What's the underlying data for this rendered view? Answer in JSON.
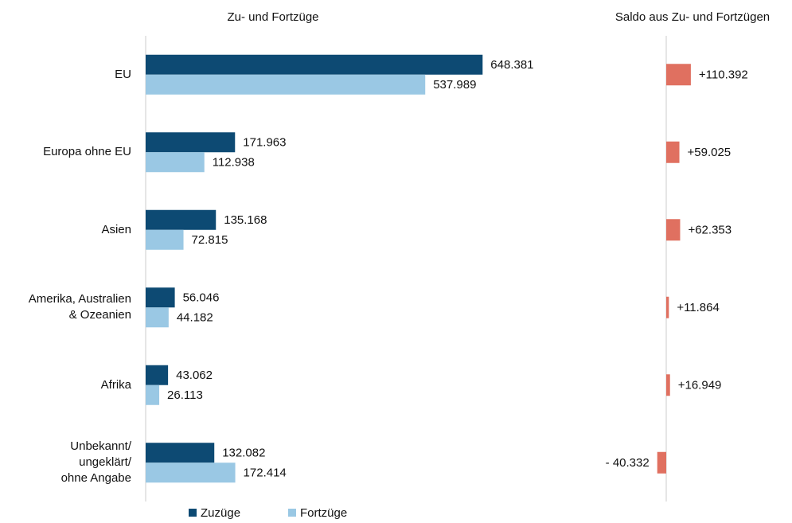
{
  "chart_data": [
    {
      "type": "bar",
      "orientation": "horizontal",
      "title": "Zu- und Fortzüge",
      "categories": [
        "EU",
        "Europa ohne EU",
        "Asien",
        "Amerika, Australien\n& Ozeanien",
        "Afrika",
        "Unbekannt/\nungeklärt/\nohne Angabe"
      ],
      "series": [
        {
          "name": "Zuzüge",
          "color": "#0d4a73",
          "values": [
            648381,
            171963,
            135168,
            56046,
            43062,
            132082
          ],
          "value_labels": [
            "648.381",
            "171.963",
            "135.168",
            "56.046",
            "43.062",
            "132.082"
          ]
        },
        {
          "name": "Fortzüge",
          "color": "#9ac8e4",
          "values": [
            537989,
            112938,
            72815,
            44182,
            26113,
            172414
          ],
          "value_labels": [
            "537.989",
            "112.938",
            "72.815",
            "44.182",
            "26.113",
            "172.414"
          ]
        }
      ],
      "xlim": [
        0,
        700000
      ],
      "legend": "bottom"
    },
    {
      "type": "bar",
      "orientation": "horizontal",
      "title": "Saldo aus Zu- und Fortzügen",
      "color": "#e07060",
      "values": [
        110392,
        59025,
        62353,
        11864,
        16949,
        -40332
      ],
      "value_labels": [
        "+110.392",
        "+59.025",
        "+62.353",
        "+11.864",
        "+16.949",
        "- 40.332"
      ],
      "xlim": [
        -150000,
        400000
      ]
    }
  ]
}
